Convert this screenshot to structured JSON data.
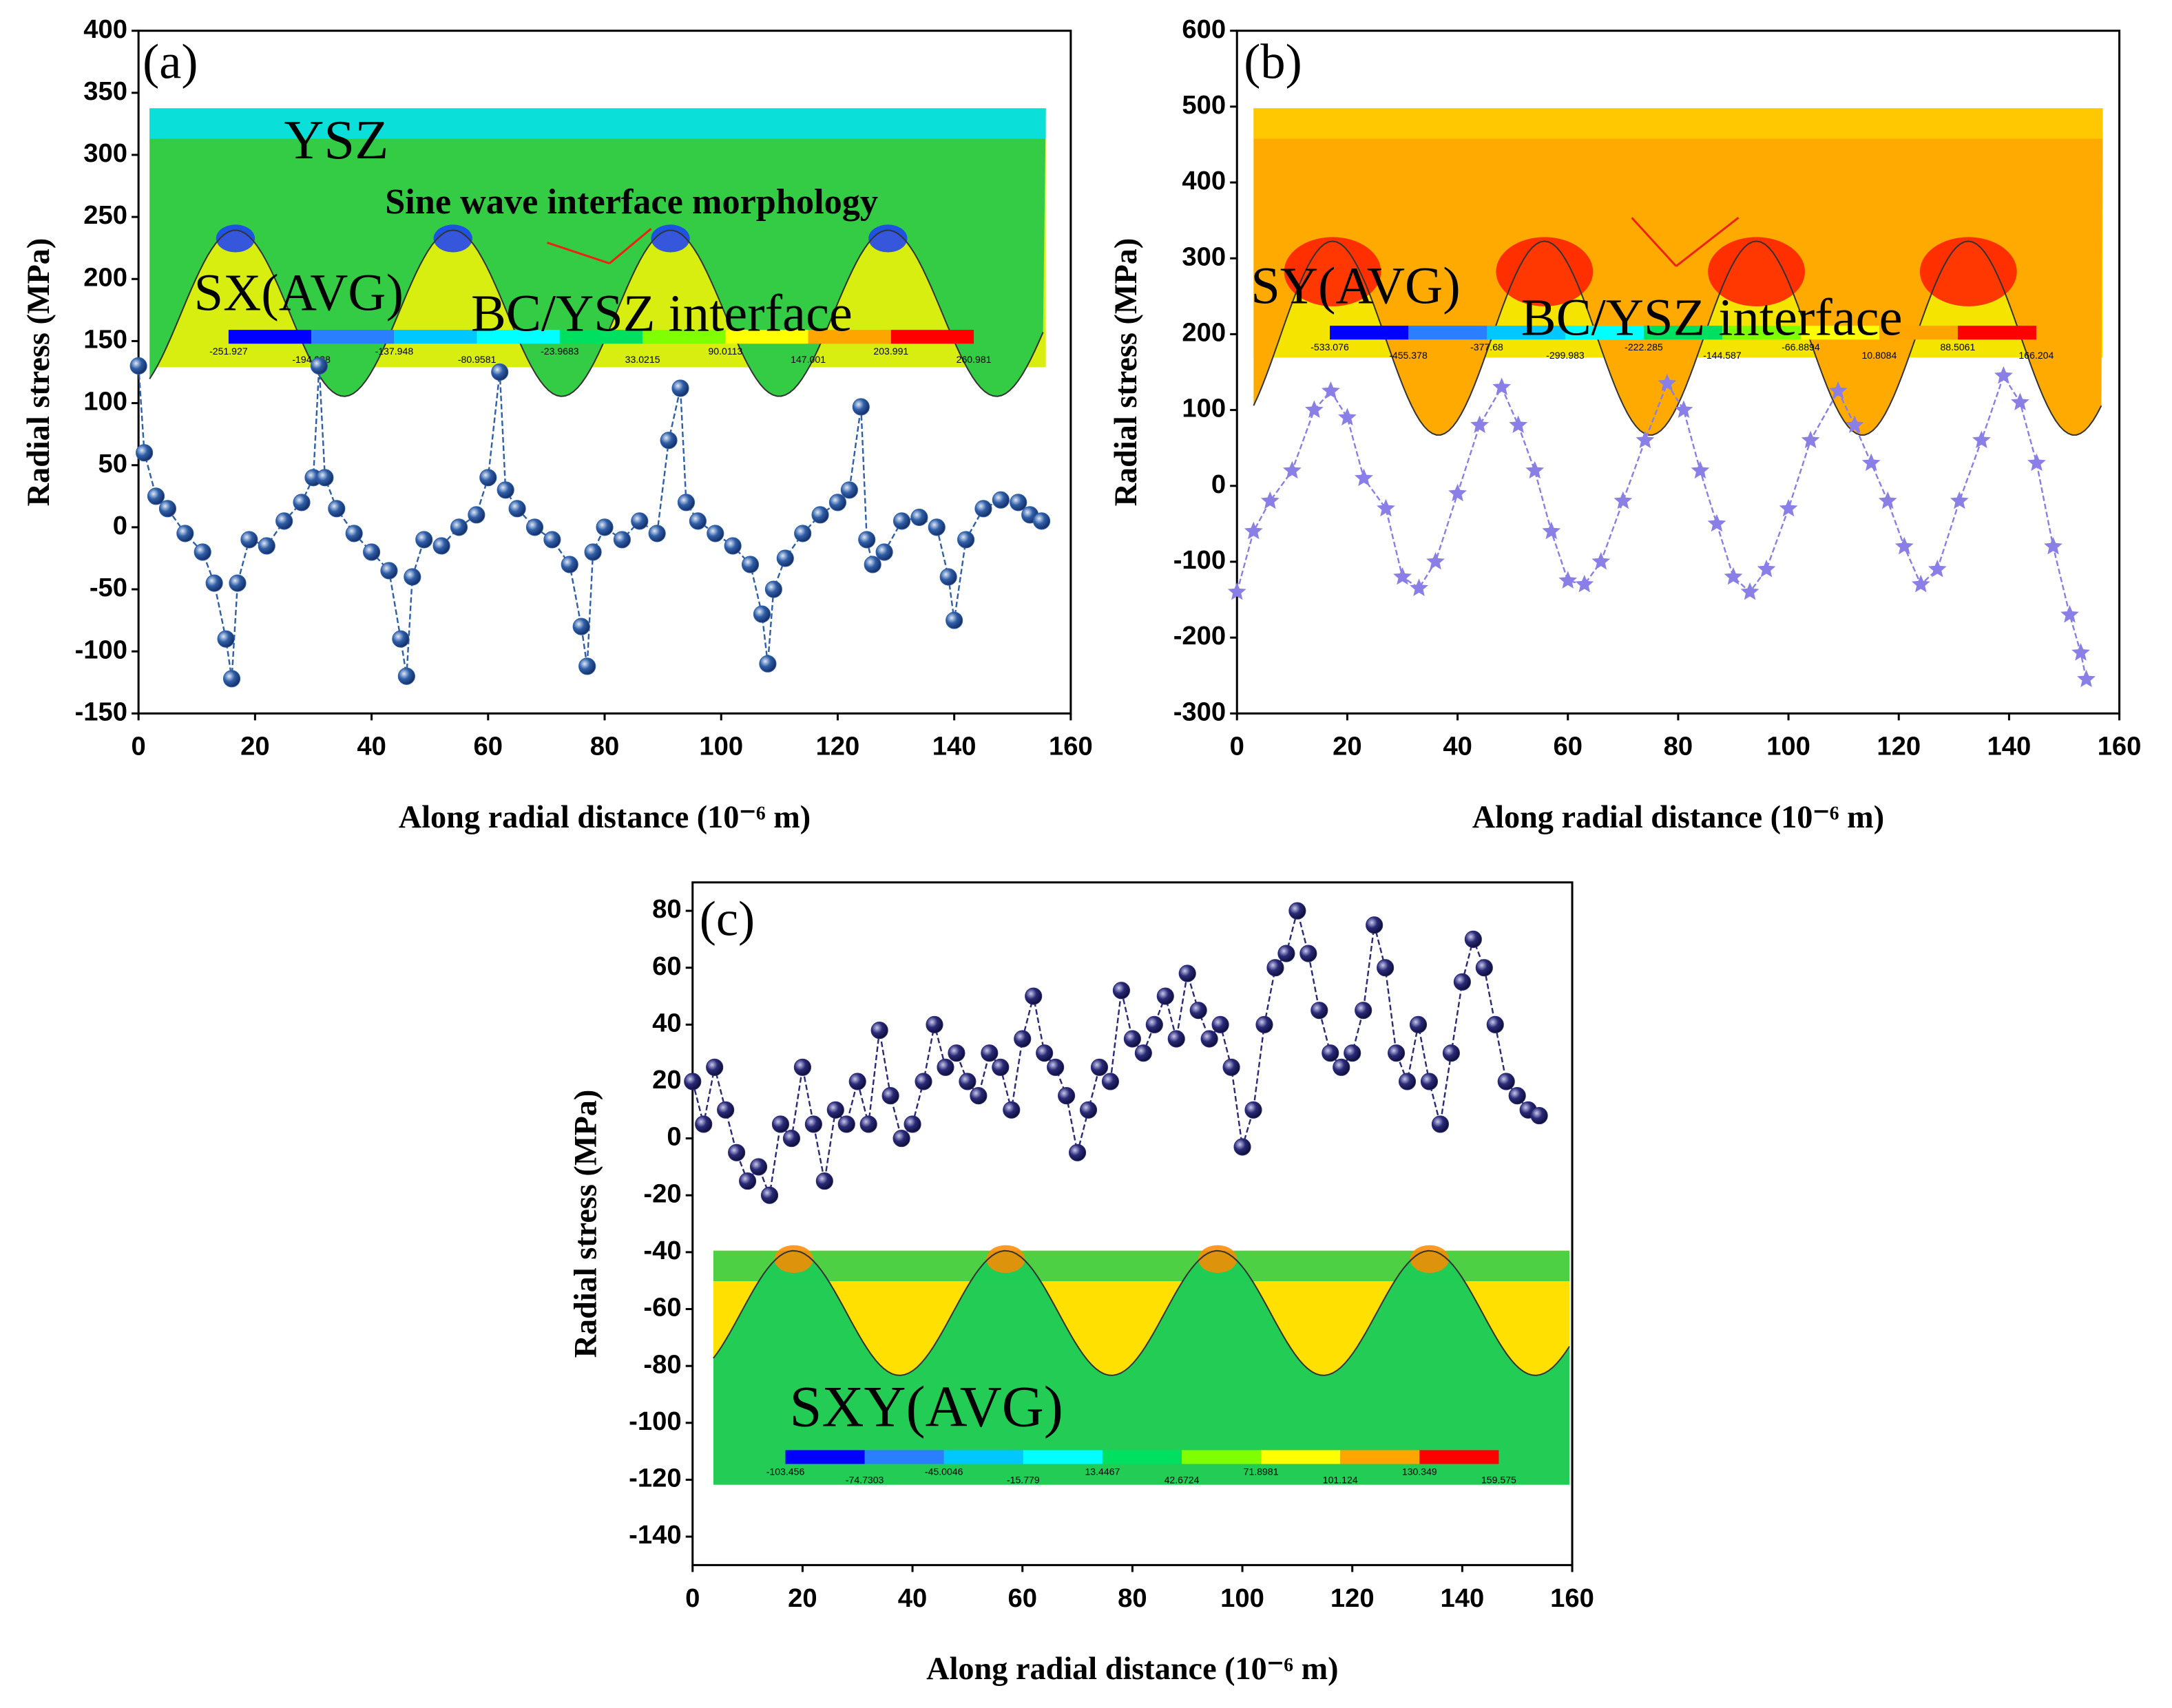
{
  "chart_data": [
    {
      "type": "line",
      "panel_label": "(a)",
      "marker": "circle",
      "color": "#2f5fa8",
      "x_label": "Along radial distance (10⁻⁶ m)",
      "y_label": "Radial stress (MPa)",
      "xlim": [
        0,
        160
      ],
      "xticks": [
        0,
        20,
        40,
        60,
        80,
        100,
        120,
        140,
        160
      ],
      "ylim": [
        -150,
        400
      ],
      "yticks": [
        -150,
        -100,
        -50,
        0,
        50,
        100,
        150,
        200,
        250,
        300,
        350,
        400
      ],
      "x": [
        0,
        1,
        3,
        5,
        8,
        11,
        13,
        15,
        16,
        17,
        19,
        22,
        25,
        28,
        30,
        31,
        32,
        34,
        37,
        40,
        43,
        45,
        46,
        47,
        49,
        52,
        55,
        58,
        60,
        62,
        63,
        65,
        68,
        71,
        74,
        76,
        77,
        78,
        80,
        83,
        86,
        89,
        91,
        93,
        94,
        96,
        99,
        102,
        105,
        107,
        108,
        109,
        111,
        114,
        117,
        120,
        122,
        124,
        125,
        126,
        128,
        131,
        134,
        137,
        139,
        140,
        142,
        145,
        148,
        151,
        153,
        155
      ],
      "values": [
        130,
        60,
        25,
        15,
        -5,
        -20,
        -45,
        -90,
        -122,
        -45,
        -10,
        -15,
        5,
        20,
        40,
        130,
        40,
        15,
        -5,
        -20,
        -35,
        -90,
        -120,
        -40,
        -10,
        -15,
        0,
        10,
        40,
        125,
        30,
        15,
        0,
        -10,
        -30,
        -80,
        -112,
        -20,
        0,
        -10,
        5,
        -5,
        70,
        112,
        20,
        5,
        -5,
        -15,
        -30,
        -70,
        -110,
        -50,
        -25,
        -5,
        10,
        20,
        30,
        97,
        -10,
        -30,
        -20,
        5,
        8,
        0,
        -40,
        -75,
        -10,
        15,
        22,
        20,
        10,
        5
      ],
      "inset": {
        "labels": [
          "YSZ",
          "Sine wave interface morphology",
          "SX(AVG)",
          "BC/YSZ interface"
        ],
        "colorbar": [
          "-251.927",
          "-194.938",
          "-137.948",
          "-80.9581",
          "-23.9683",
          "33.0215",
          "90.0113",
          "147.001",
          "203.991",
          "260.981"
        ]
      }
    },
    {
      "type": "line",
      "panel_label": "(b)",
      "marker": "star",
      "color": "#8a7fe6",
      "x_label": "Along radial distance (10⁻⁶ m)",
      "y_label": "Radial stress (MPa)",
      "xlim": [
        0,
        160
      ],
      "xticks": [
        0,
        20,
        40,
        60,
        80,
        100,
        120,
        140,
        160
      ],
      "ylim": [
        -300,
        600
      ],
      "yticks": [
        -300,
        -200,
        -100,
        0,
        100,
        200,
        300,
        400,
        500,
        600
      ],
      "x": [
        0,
        3,
        6,
        10,
        14,
        17,
        20,
        23,
        27,
        30,
        33,
        36,
        40,
        44,
        48,
        51,
        54,
        57,
        60,
        63,
        66,
        70,
        74,
        78,
        81,
        84,
        87,
        90,
        93,
        96,
        100,
        104,
        109,
        112,
        115,
        118,
        121,
        124,
        127,
        131,
        135,
        139,
        142,
        145,
        148,
        151,
        153,
        154
      ],
      "values": [
        -140,
        -60,
        -20,
        20,
        100,
        125,
        90,
        10,
        -30,
        -120,
        -135,
        -100,
        -10,
        80,
        130,
        80,
        20,
        -60,
        -125,
        -130,
        -100,
        -20,
        60,
        135,
        100,
        20,
        -50,
        -120,
        -140,
        -110,
        -30,
        60,
        125,
        80,
        30,
        -20,
        -80,
        -130,
        -110,
        -20,
        60,
        145,
        110,
        30,
        -80,
        -170,
        -220,
        -255
      ],
      "inset": {
        "labels": [
          "SY(AVG)",
          "BC/YSZ interface"
        ],
        "colorbar": [
          "-533.076",
          "-455.378",
          "-377.68",
          "-299.983",
          "-222.285",
          "-144.587",
          "-66.8894",
          "10.8084",
          "88.5061",
          "166.204"
        ]
      }
    },
    {
      "type": "line",
      "panel_label": "(c)",
      "marker": "circle",
      "color": "#2a2a78",
      "x_label": "Along radial distance (10⁻⁶ m)",
      "y_label": "Radial stress (MPa)",
      "xlim": [
        0,
        160
      ],
      "xticks": [
        0,
        20,
        40,
        60,
        80,
        100,
        120,
        140,
        160
      ],
      "ylim": [
        -150,
        90
      ],
      "yticks": [
        -140,
        -120,
        -100,
        -80,
        -60,
        -40,
        -20,
        0,
        20,
        40,
        60,
        80
      ],
      "x": [
        0,
        2,
        4,
        6,
        8,
        10,
        12,
        14,
        16,
        18,
        20,
        22,
        24,
        26,
        28,
        30,
        32,
        34,
        36,
        38,
        40,
        42,
        44,
        46,
        48,
        50,
        52,
        54,
        56,
        58,
        60,
        62,
        64,
        66,
        68,
        70,
        72,
        74,
        76,
        78,
        80,
        82,
        84,
        86,
        88,
        90,
        92,
        94,
        96,
        98,
        100,
        102,
        104,
        106,
        108,
        110,
        112,
        114,
        116,
        118,
        120,
        122,
        124,
        126,
        128,
        130,
        132,
        134,
        136,
        138,
        140,
        142,
        144,
        146,
        148,
        150,
        152,
        154
      ],
      "values": [
        20,
        5,
        25,
        10,
        -5,
        -15,
        -10,
        -20,
        5,
        0,
        25,
        5,
        -15,
        10,
        5,
        20,
        5,
        38,
        15,
        0,
        5,
        20,
        40,
        25,
        30,
        20,
        15,
        30,
        25,
        10,
        35,
        50,
        30,
        25,
        15,
        -5,
        10,
        25,
        20,
        52,
        35,
        30,
        40,
        50,
        35,
        58,
        45,
        35,
        40,
        25,
        -3,
        10,
        40,
        60,
        65,
        80,
        65,
        45,
        30,
        25,
        30,
        45,
        75,
        60,
        30,
        20,
        40,
        20,
        5,
        30,
        55,
        70,
        60,
        40,
        20,
        15,
        10,
        8
      ],
      "inset": {
        "labels": [
          "SXY(AVG)"
        ],
        "colorbar": [
          "-103.456",
          "-74.7303",
          "-45.0046",
          "-15.779",
          "13.4467",
          "42.6724",
          "71.8981",
          "101.124",
          "130.349",
          "159.575"
        ]
      }
    }
  ]
}
